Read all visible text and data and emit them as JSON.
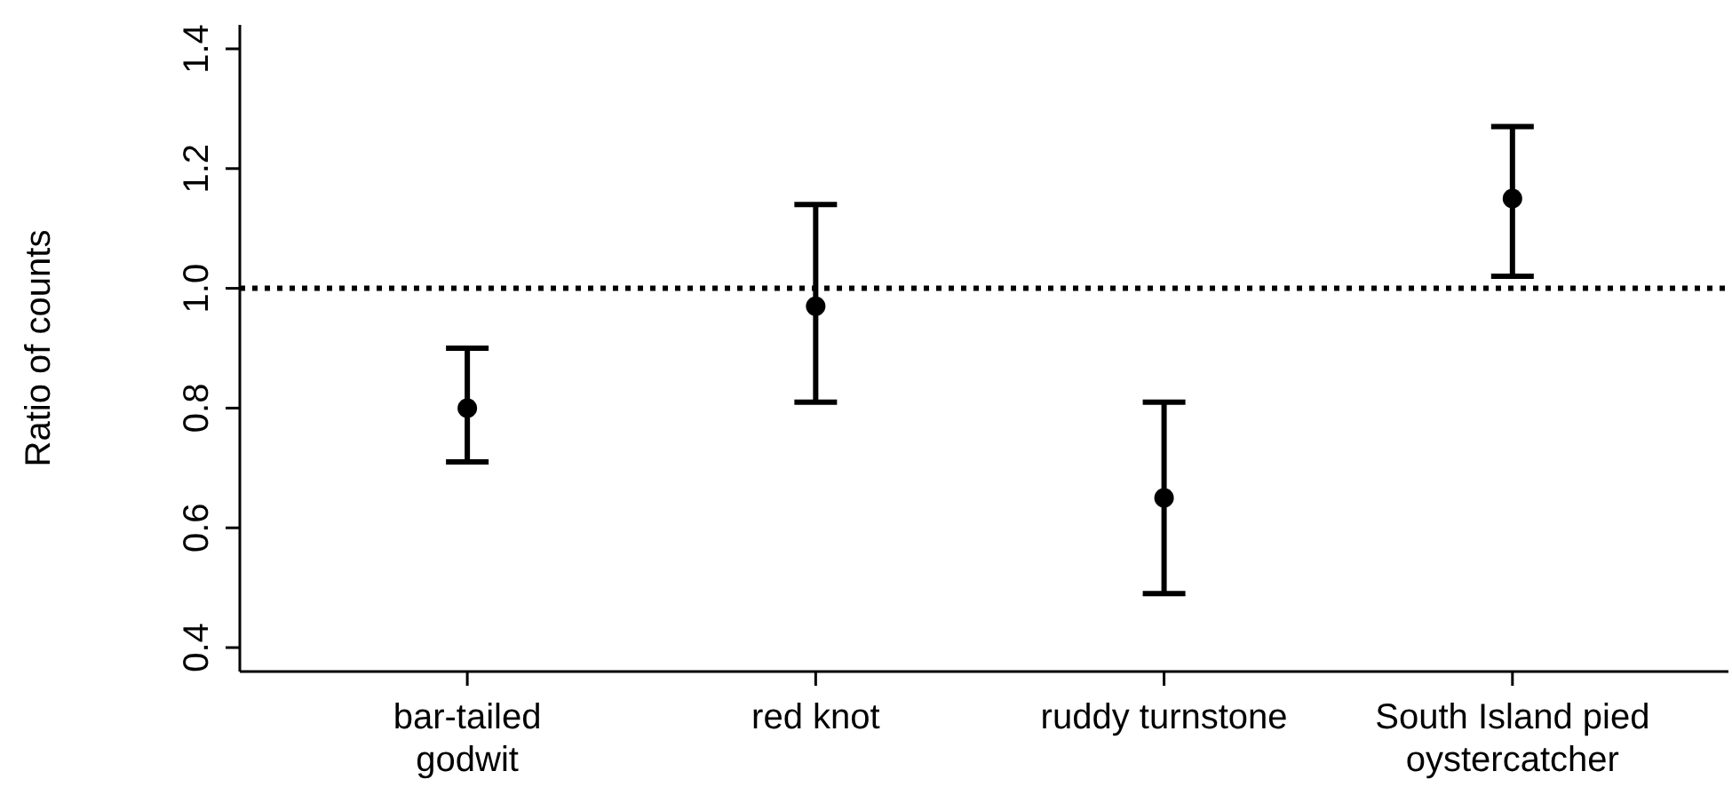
{
  "chart_data": {
    "type": "scatter",
    "ylabel": "Ratio of counts",
    "categories": [
      "bar-tailed\ngodwit",
      "red knot",
      "ruddy turnstone",
      "South Island pied\noystercatcher"
    ],
    "values": [
      0.8,
      0.97,
      0.65,
      1.15
    ],
    "errors": [
      [
        0.71,
        0.9
      ],
      [
        0.81,
        1.14
      ],
      [
        0.49,
        0.81
      ],
      [
        1.02,
        1.27
      ]
    ],
    "color": "#000000",
    "marker": "circle",
    "ylim": [
      0.36,
      1.44
    ],
    "yticks": [
      0.4,
      0.6,
      0.8,
      {
        "value": 1,
        "label": "1.0"
      },
      1.2,
      1.4
    ],
    "ref_lines": [
      {
        "axis": "y",
        "value": 1.0,
        "color": "#000000",
        "line_style": "dotted"
      }
    ],
    "grid": false,
    "legend": false
  }
}
